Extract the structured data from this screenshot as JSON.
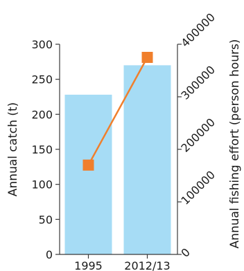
{
  "chart_data": {
    "type": "bar+line",
    "categories": [
      "1995",
      "2012/13"
    ],
    "series": [
      {
        "kind": "bar",
        "axis": "left",
        "values": [
          228,
          270
        ],
        "color": "#a6dcf5"
      },
      {
        "kind": "line",
        "axis": "right",
        "values": [
          170000,
          375000
        ],
        "color": "#f07f2c",
        "marker": "square"
      }
    ],
    "ylabel": "Annual catch (t)",
    "ylabel_right": "Annual fishing effort (person hours)",
    "ylim": [
      0,
      300
    ],
    "ylim_right": [
      0,
      400000
    ],
    "yticks": [
      0,
      50,
      100,
      150,
      200,
      250,
      300
    ],
    "yticks_right": [
      0,
      100000,
      200000,
      300000,
      400000
    ],
    "grid": false,
    "legend": "none"
  }
}
